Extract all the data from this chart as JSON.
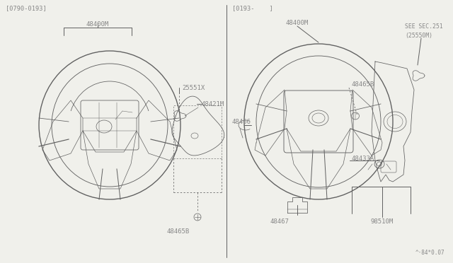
{
  "bg_color": "#f0f0eb",
  "line_color": "#606060",
  "text_color": "#606060",
  "label_color": "#888888",
  "left_header": "[0790-0193]",
  "right_header": "[0193-    ]",
  "footnote": "^·84*0.07",
  "font_size": 6.5,
  "lw": 0.7
}
